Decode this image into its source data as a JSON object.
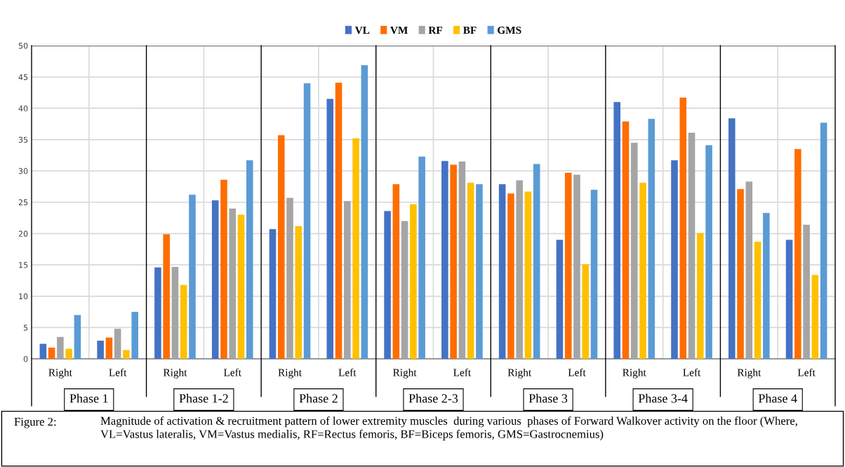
{
  "chart_data": {
    "type": "bar",
    "categories": [
      "Right",
      "Left",
      "Right",
      "Left",
      "Right",
      "Left",
      "Right",
      "Left",
      "Right",
      "Left",
      "Right",
      "Left",
      "Right",
      "Left"
    ],
    "series": [
      {
        "name": "VL",
        "color": "#4472c4",
        "values": [
          2.4,
          2.9,
          14.6,
          25.3,
          20.7,
          41.5,
          23.6,
          31.6,
          27.9,
          19.0,
          41.0,
          31.7,
          38.4,
          19.0
        ]
      },
      {
        "name": "VM",
        "color": "#ff6d00",
        "values": [
          1.8,
          3.4,
          19.9,
          28.6,
          35.7,
          44.1,
          27.9,
          31.0,
          26.4,
          29.7,
          37.9,
          41.7,
          27.1,
          33.5
        ]
      },
      {
        "name": "RF",
        "color": "#a5a5a5",
        "values": [
          3.5,
          4.8,
          14.7,
          24.0,
          25.7,
          25.2,
          22.0,
          31.5,
          28.5,
          29.4,
          34.5,
          36.1,
          28.3,
          21.4
        ]
      },
      {
        "name": "BF",
        "color": "#ffc000",
        "values": [
          1.6,
          1.4,
          11.8,
          23.0,
          21.2,
          35.2,
          24.7,
          28.1,
          26.7,
          15.1,
          28.1,
          20.1,
          18.7,
          13.4
        ]
      },
      {
        "name": "GMS",
        "color": "#5b9bd5",
        "values": [
          7.0,
          7.5,
          26.2,
          31.7,
          44.0,
          46.9,
          32.3,
          27.9,
          31.1,
          27.0,
          38.3,
          34.1,
          23.3,
          37.7
        ]
      }
    ],
    "ylim": [
      0,
      50
    ],
    "yticks": [
      0,
      5,
      10,
      15,
      20,
      25,
      30,
      35,
      40,
      45,
      50
    ],
    "grid": true,
    "legend": "top",
    "annotations": [
      "Phase 1",
      "Phase 1-2",
      "Phase 2",
      "Phase 2-3",
      "Phase 3",
      "Phase 3-4",
      "Phase 4",
      "Figure 2:",
      "Magnitude of activation & recruitment pattern of lower extremity muscles  during various  phases of Forward Walkover activity on the floor (Where, VL=Vastus lateralis, VM=Vastus medialis, RF=Rectus femoris, BF=Biceps femoris, GMS=Gastrocnemius)"
    ]
  }
}
